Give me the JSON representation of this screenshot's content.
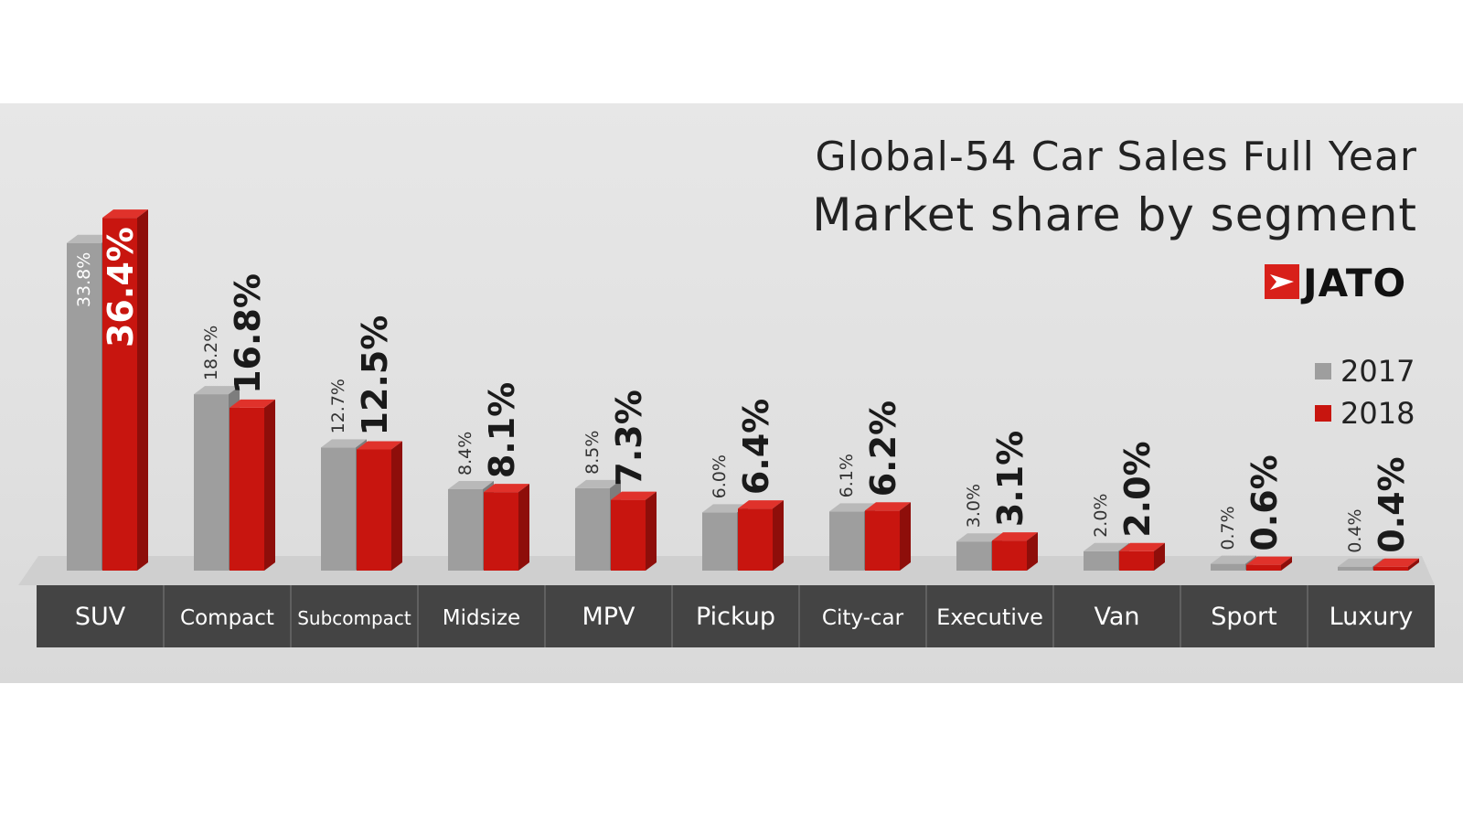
{
  "colors": {
    "series_2017": "#9e9e9e",
    "series_2017_top": "#b9b9b9",
    "series_2017_side": "#7d7d7d",
    "series_2018": "#c8150f",
    "series_2018_top": "#e0322b",
    "series_2018_side": "#8e0e0a",
    "label_bar_bg": "#444444",
    "logo_red": "#d8201a"
  },
  "logo": {
    "text": "JATO",
    "icon": "jato-arrow-icon"
  },
  "chart_data": {
    "type": "bar",
    "title": "Global-54 Car Sales Full Year",
    "subtitle": "Market share by segment",
    "categories": [
      "SUV",
      "Compact",
      "Subcompact",
      "Midsize",
      "MPV",
      "Pickup",
      "City-car",
      "Executive",
      "Van",
      "Sport",
      "Luxury"
    ],
    "series": [
      {
        "name": "2017",
        "values": [
          33.8,
          18.2,
          12.7,
          8.4,
          8.5,
          6.0,
          6.1,
          3.0,
          2.0,
          0.7,
          0.4
        ],
        "labels": [
          "33.8%",
          "18.2%",
          "12.7%",
          "8.4%",
          "8.5%",
          "6.0%",
          "6.1%",
          "3.0%",
          "2.0%",
          "0.7%",
          "0.4%"
        ]
      },
      {
        "name": "2018",
        "values": [
          36.4,
          16.8,
          12.5,
          8.1,
          7.3,
          6.4,
          6.2,
          3.1,
          2.0,
          0.6,
          0.4
        ],
        "labels": [
          "36.4%",
          "16.8%",
          "12.5%",
          "8.1%",
          "7.3%",
          "6.4%",
          "6.2%",
          "3.1%",
          "2.0%",
          "0.6%",
          "0.4%"
        ]
      }
    ],
    "xlabel": "",
    "ylabel": "",
    "ylim": [
      0,
      40
    ],
    "grid": false,
    "legend_position": "right"
  }
}
